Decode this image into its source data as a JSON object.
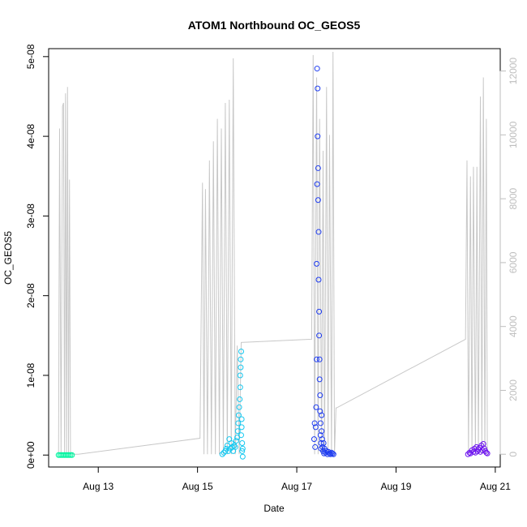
{
  "chart_data": {
    "type": "scatter",
    "title": "ATOM1 Northbound OC_GEOS5",
    "xlabel": "Date",
    "ylabel": "OC_GEOS5",
    "colors": {
      "secondary_axis": "#bebebe",
      "altitude_line": "#c8c8c8",
      "points": [
        "#00f5a0",
        "#14c8f0",
        "#1e3cf0",
        "#6e14f0"
      ]
    },
    "x_axis": {
      "unit": "day of August",
      "range": [
        12.0,
        21.1
      ],
      "ticks": [
        {
          "value": 13,
          "label": "Aug 13"
        },
        {
          "value": 15,
          "label": "Aug 15"
        },
        {
          "value": 17,
          "label": "Aug 17"
        },
        {
          "value": 19,
          "label": "Aug 19"
        },
        {
          "value": 21,
          "label": "Aug 21"
        }
      ]
    },
    "y_axis_left": {
      "range": [
        -1.5e-09,
        5.1e-08
      ],
      "ticks": [
        {
          "value": 0,
          "label": "0e+00"
        },
        {
          "value": 1e-08,
          "label": "1e-08"
        },
        {
          "value": 2e-08,
          "label": "2e-08"
        },
        {
          "value": 3e-08,
          "label": "3e-08"
        },
        {
          "value": 4e-08,
          "label": "4e-08"
        },
        {
          "value": 5e-08,
          "label": "5e-08"
        }
      ]
    },
    "y_axis_right": {
      "range": [
        -400,
        12700
      ],
      "ticks": [
        {
          "value": 0,
          "label": "0"
        },
        {
          "value": 2000,
          "label": "2000"
        },
        {
          "value": 4000,
          "label": "4000"
        },
        {
          "value": 6000,
          "label": "6000"
        },
        {
          "value": 8000,
          "label": "8000"
        },
        {
          "value": 10000,
          "label": "10000"
        },
        {
          "value": 12000,
          "label": "12000"
        }
      ]
    },
    "secondary_series": {
      "x": [
        12.2,
        12.22,
        12.25,
        12.28,
        12.3,
        12.32,
        12.34,
        12.36,
        12.38,
        12.4,
        12.42,
        12.44,
        12.47,
        12.5,
        12.6,
        15.05,
        15.1,
        15.13,
        15.16,
        15.2,
        15.24,
        15.28,
        15.32,
        15.36,
        15.4,
        15.44,
        15.48,
        15.52,
        15.56,
        15.6,
        15.64,
        15.68,
        15.72,
        15.76,
        15.8,
        15.84,
        15.88,
        17.3,
        17.33,
        17.36,
        17.4,
        17.43,
        17.46,
        17.5,
        17.53,
        17.56,
        17.6,
        17.63,
        17.66,
        17.7,
        17.73,
        17.76,
        17.79,
        17.8,
        20.4,
        20.43,
        20.46,
        20.5,
        20.53,
        20.56,
        20.6,
        20.63,
        20.66,
        20.7,
        20.73,
        20.76,
        20.79,
        20.82,
        20.84
      ],
      "y": [
        0,
        10200,
        0,
        10900,
        11000,
        0,
        11300,
        0,
        11500,
        0,
        8600,
        0,
        50,
        0,
        0,
        500,
        8500,
        0,
        8300,
        0,
        9200,
        0,
        9800,
        0,
        10500,
        0,
        10200,
        0,
        11000,
        0,
        11100,
        0,
        12400,
        0,
        3400,
        0,
        3500,
        3600,
        12500,
        0,
        11800,
        0,
        10500,
        0,
        9500,
        0,
        11500,
        0,
        10000,
        0,
        12600,
        0,
        1450,
        1450,
        3600,
        9200,
        0,
        8700,
        0,
        9000,
        0,
        9000,
        0,
        11200,
        0,
        11800,
        0,
        10500,
        0
      ]
    },
    "series": [
      {
        "color": "#00f5a0",
        "x": [
          12.2,
          12.23,
          12.26,
          12.29,
          12.32,
          12.35,
          12.38,
          12.41,
          12.44,
          12.47
        ],
        "y": [
          2e-12,
          1e-12,
          3e-12,
          2e-12,
          1e-12,
          2e-12,
          3e-12,
          1e-12,
          2e-12,
          1e-12
        ]
      },
      {
        "color": "#14c8f0",
        "x": [
          15.5,
          15.53,
          15.56,
          15.58,
          15.6,
          15.62,
          15.64,
          15.66,
          15.68,
          15.7,
          15.72,
          15.74,
          15.76,
          15.78,
          15.8,
          15.81,
          15.82,
          15.83,
          15.84,
          15.85,
          15.86,
          15.86,
          15.87,
          15.87,
          15.88,
          15.88,
          15.89,
          15.89,
          15.9,
          15.9,
          15.91,
          15.91
        ],
        "y": [
          1e-10,
          3e-10,
          5e-10,
          8e-10,
          1.2e-09,
          5e-10,
          2e-09,
          8e-10,
          1.5e-09,
          1e-09,
          5e-10,
          1.2e-09,
          1e-09,
          1.8e-09,
          2.2e-09,
          3e-09,
          4e-09,
          5e-09,
          6e-09,
          7e-09,
          8.5e-09,
          1e-08,
          1.1e-08,
          1.2e-08,
          1.3e-08,
          2.5e-09,
          3.5e-09,
          4.5e-09,
          1.5e-09,
          5e-10,
          -2e-10,
          8e-10
        ]
      },
      {
        "color": "#1e3cf0",
        "x": [
          17.35,
          17.36,
          17.37,
          17.38,
          17.39,
          17.4,
          17.4,
          17.41,
          17.41,
          17.42,
          17.42,
          17.43,
          17.43,
          17.44,
          17.44,
          17.45,
          17.45,
          17.46,
          17.46,
          17.47,
          17.47,
          17.48,
          17.48,
          17.49,
          17.49,
          17.5,
          17.5,
          17.51,
          17.52,
          17.53,
          17.54,
          17.55,
          17.56,
          17.58,
          17.6,
          17.62,
          17.64,
          17.66,
          17.68,
          17.7,
          17.72,
          17.74
        ],
        "y": [
          2e-09,
          4e-09,
          1e-09,
          3.5e-09,
          6e-09,
          1.2e-08,
          2.4e-08,
          3.4e-08,
          4.85e-08,
          4.6e-08,
          4e-08,
          3.6e-08,
          3.2e-08,
          2.8e-08,
          2.2e-08,
          1.8e-08,
          1.5e-08,
          1.2e-08,
          9.5e-09,
          7.5e-09,
          5.5e-09,
          4e-09,
          2.5e-09,
          1.5e-09,
          8e-10,
          3e-09,
          5e-09,
          2e-09,
          1e-09,
          5e-10,
          1.5e-09,
          2e-10,
          8e-10,
          3e-10,
          5e-10,
          1e-10,
          4e-10,
          2e-10,
          1e-10,
          3e-10,
          2e-10,
          1e-10
        ]
      },
      {
        "color": "#6e14f0",
        "x": [
          20.45,
          20.48,
          20.5,
          20.53,
          20.56,
          20.58,
          20.6,
          20.62,
          20.64,
          20.66,
          20.68,
          20.7,
          20.72,
          20.74,
          20.76,
          20.78,
          20.8,
          20.82,
          20.84
        ],
        "y": [
          1e-10,
          3e-10,
          2e-10,
          6e-10,
          4e-10,
          8e-10,
          3e-10,
          1e-09,
          5e-10,
          7e-10,
          9e-10,
          4e-10,
          1.2e-09,
          6e-10,
          1.4e-09,
          8e-10,
          5e-10,
          3e-10,
          2e-10
        ]
      }
    ]
  }
}
